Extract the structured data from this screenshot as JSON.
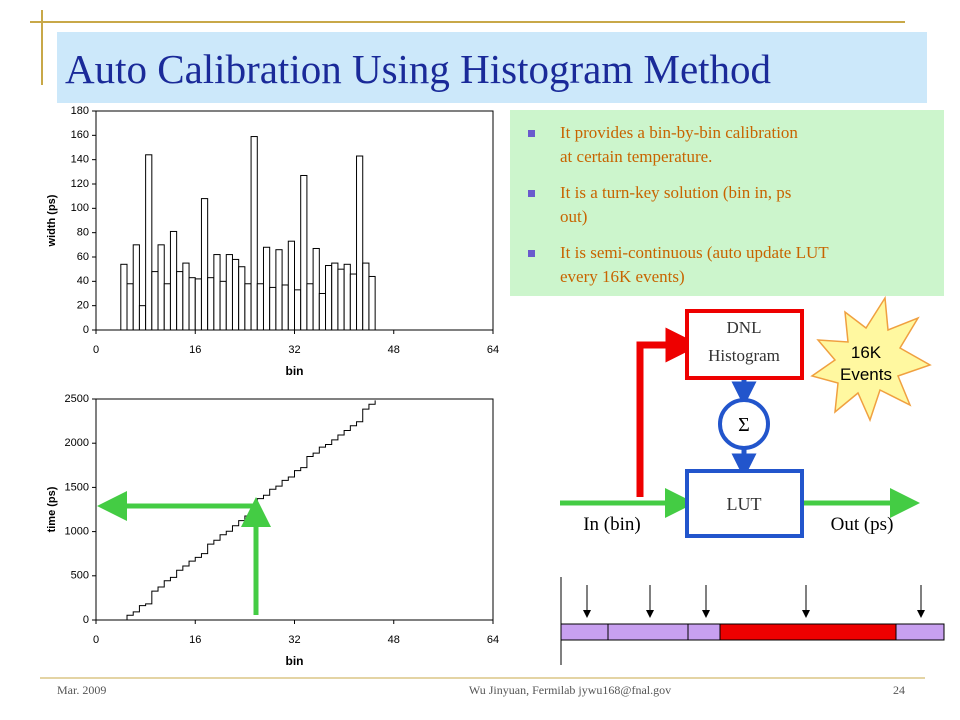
{
  "title": "Auto Calibration Using Histogram Method",
  "bullets": [
    "It provides a bin-by-bin calibration at certain temperature.",
    "It is a turn-key solution (bin in, ps out)",
    "It is semi-continuous (auto update LUT every 16K events)"
  ],
  "diagram": {
    "histogram_label": [
      "DNL",
      "Histogram"
    ],
    "sum_symbol": "Σ",
    "lut_label": "LUT",
    "input_label": "In (bin)",
    "output_label": "Out (ps)",
    "burst_label": [
      "16K",
      "Events"
    ]
  },
  "footer": {
    "date": "Mar. 2009",
    "author": "Wu Jinyuan, Fermilab jywu168@fnal.gov",
    "page": "24"
  },
  "chart_data": [
    {
      "type": "histogram",
      "xlabel": "bin",
      "ylabel": "width (ps)",
      "color": "#000000",
      "bins": [
        4,
        5,
        6,
        7,
        8,
        9,
        10,
        11,
        12,
        13,
        14,
        15,
        16,
        17,
        18,
        19,
        20,
        21,
        22,
        23,
        24,
        25,
        26,
        27,
        28,
        29,
        30,
        31,
        32,
        33,
        34,
        35,
        36,
        37,
        38,
        39,
        40,
        41,
        42,
        43,
        44,
        45
      ],
      "values": [
        54,
        38,
        70,
        20,
        144,
        48,
        70,
        38,
        81,
        48,
        55,
        43,
        42,
        108,
        43,
        62,
        40,
        62,
        58,
        52,
        38,
        159,
        38,
        68,
        35,
        66,
        37,
        73,
        33,
        127,
        38,
        67,
        30,
        53,
        55,
        50,
        54,
        46,
        143,
        55,
        44
      ],
      "xlim": [
        0,
        64
      ],
      "xticks": [
        0,
        16,
        32,
        48,
        64
      ],
      "ylim": [
        0,
        180
      ],
      "yticks": [
        0,
        20,
        40,
        60,
        80,
        100,
        120,
        140,
        160,
        180
      ]
    },
    {
      "type": "step",
      "xlabel": "bin",
      "ylabel": "time (ps)",
      "color": "#000000",
      "x": [
        4,
        5,
        6,
        7,
        8,
        9,
        10,
        11,
        12,
        13,
        14,
        15,
        16,
        17,
        18,
        19,
        20,
        21,
        22,
        23,
        24,
        25,
        26,
        27,
        28,
        29,
        30,
        31,
        32,
        33,
        34,
        35,
        36,
        37,
        38,
        39,
        40,
        41,
        42,
        43,
        44,
        45
      ],
      "values": [
        0,
        54,
        92,
        162,
        182,
        326,
        374,
        444,
        482,
        563,
        611,
        666,
        709,
        751,
        859,
        902,
        964,
        1004,
        1066,
        1124,
        1176,
        1214,
        1373,
        1411,
        1479,
        1514,
        1580,
        1617,
        1690,
        1723,
        1850,
        1888,
        1955,
        1985,
        2038,
        2093,
        2143,
        2197,
        2243,
        2386,
        2441,
        2485
      ],
      "xlim": [
        0,
        64
      ],
      "xticks": [
        0,
        16,
        32,
        48,
        64
      ],
      "ylim": [
        0,
        2500
      ],
      "yticks": [
        0,
        500,
        1000,
        1500,
        2000,
        2500
      ]
    }
  ]
}
